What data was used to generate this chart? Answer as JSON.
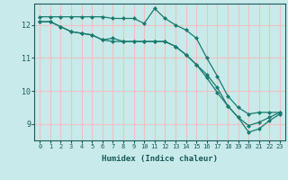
{
  "xlabel": "Humidex (Indice chaleur)",
  "background_color": "#c8eaea",
  "grid_color": "#f0c0c0",
  "line_color": "#1a7a6e",
  "series1_x": [
    0,
    1,
    2,
    3,
    4,
    5,
    6,
    7,
    8,
    9,
    10,
    11,
    12,
    13,
    14,
    15,
    16,
    17,
    18,
    19,
    20,
    21,
    22,
    23
  ],
  "series1_y": [
    12.25,
    12.25,
    12.25,
    12.25,
    12.25,
    12.25,
    12.25,
    12.2,
    12.2,
    12.2,
    12.05,
    12.5,
    12.2,
    12.0,
    11.85,
    11.6,
    11.0,
    10.45,
    9.85,
    9.5,
    9.3,
    9.35,
    9.35,
    9.35
  ],
  "series2_x": [
    0,
    1,
    2,
    3,
    4,
    5,
    6,
    7,
    8,
    9,
    10,
    11,
    12,
    13,
    14,
    15,
    16,
    17,
    18,
    19,
    20,
    21,
    22,
    23
  ],
  "series2_y": [
    12.1,
    12.1,
    11.95,
    11.8,
    11.75,
    11.7,
    11.55,
    11.5,
    11.5,
    11.5,
    11.5,
    11.5,
    11.5,
    11.35,
    11.1,
    10.8,
    10.4,
    9.95,
    9.55,
    9.2,
    8.95,
    9.05,
    9.2,
    9.35
  ],
  "series3_x": [
    0,
    1,
    2,
    3,
    4,
    5,
    6,
    7,
    8,
    9,
    10,
    11,
    12,
    13,
    14,
    15,
    16,
    17,
    18,
    19,
    20,
    21,
    22,
    23
  ],
  "series3_y": [
    12.1,
    12.1,
    11.95,
    11.8,
    11.75,
    11.7,
    11.55,
    11.6,
    11.5,
    11.5,
    11.5,
    11.5,
    11.5,
    11.35,
    11.1,
    10.8,
    10.5,
    10.1,
    9.55,
    9.2,
    8.75,
    8.85,
    9.1,
    9.3
  ],
  "xlim": [
    -0.5,
    23.5
  ],
  "ylim": [
    8.5,
    12.65
  ],
  "yticks": [
    9,
    10,
    11,
    12
  ],
  "xticks": [
    0,
    1,
    2,
    3,
    4,
    5,
    6,
    7,
    8,
    9,
    10,
    11,
    12,
    13,
    14,
    15,
    16,
    17,
    18,
    19,
    20,
    21,
    22,
    23
  ]
}
